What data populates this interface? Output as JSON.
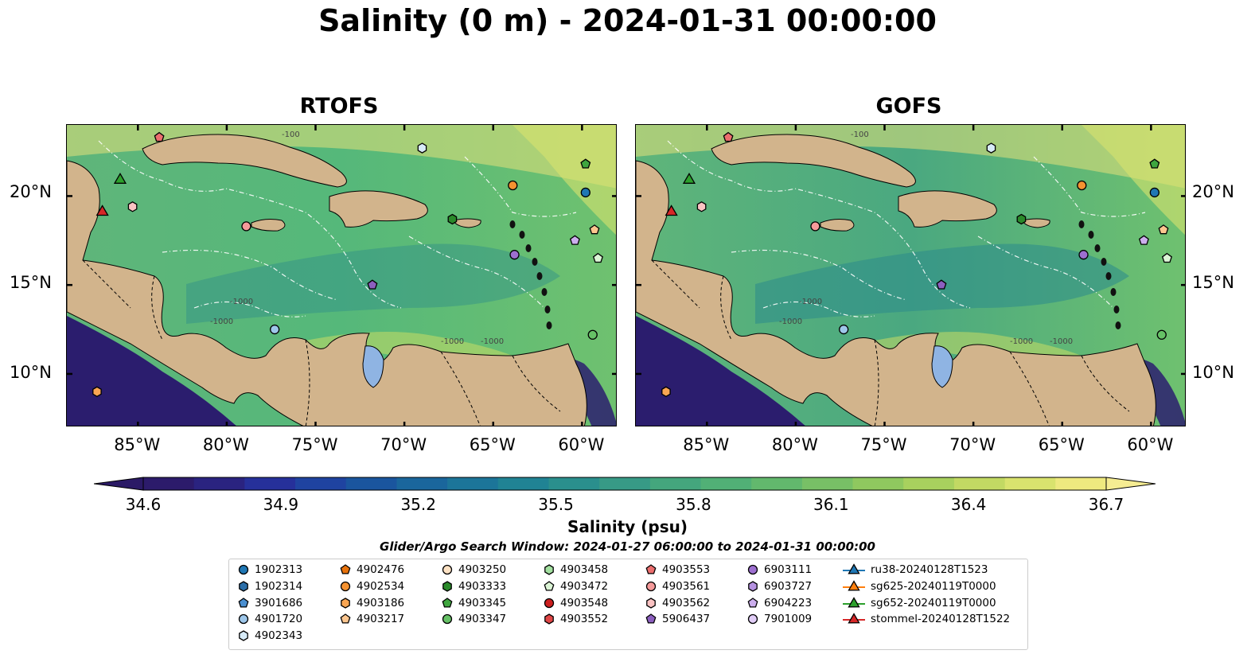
{
  "title": "Salinity (0 m) - 2024-01-31 00:00:00",
  "panels": [
    {
      "title": "RTOFS",
      "tint": "#55b87a"
    },
    {
      "title": "GOFS",
      "tint": "#4aa880"
    }
  ],
  "lat_labels": [
    "20°N",
    "15°N",
    "10°N"
  ],
  "lon_labels": [
    "85°W",
    "80°W",
    "75°W",
    "70°W",
    "65°W",
    "60°W"
  ],
  "contour_labels": [
    "-100",
    "-1000",
    "-1000",
    "-1000",
    "-1000"
  ],
  "colors": {
    "land": "#d2b48c",
    "ocean_mid": "#4daf7c",
    "ocean_fresh": "#2b1d6e",
    "ocean_salty": "#e6e07a",
    "lake": "#8fb4e3"
  },
  "colorbar": {
    "label": "Salinity (psu)",
    "min": 34.6,
    "max": 36.7,
    "ticks": [
      "34.6",
      "34.9",
      "35.2",
      "35.5",
      "35.8",
      "36.1",
      "36.4",
      "36.7"
    ],
    "colors": [
      "#2c1b6b",
      "#2a2380",
      "#26309a",
      "#1f43a0",
      "#1a559e",
      "#1a669c",
      "#1c7599",
      "#208394",
      "#2a8f8d",
      "#379a86",
      "#44a67d",
      "#51b076",
      "#62b86d",
      "#78c066",
      "#8fc85f",
      "#a8d15e",
      "#c2d963",
      "#d9e36e",
      "#eee97f"
    ],
    "extend_low": "#2b1a66",
    "extend_high": "#f5ec92"
  },
  "search_window": "Glider/Argo Search Window: 2024-01-27 06:00:00 to 2024-01-31 00:00:00",
  "legend": [
    {
      "label": "1902313",
      "marker": "circle",
      "color": "#1f77b4"
    },
    {
      "label": "1902314",
      "marker": "hexagon",
      "color": "#2b6ea8"
    },
    {
      "label": "3901686",
      "marker": "pentagon",
      "color": "#4a8fd0"
    },
    {
      "label": "4901720",
      "marker": "circle",
      "color": "#9ec7ea"
    },
    {
      "label": "4902343",
      "marker": "hexagon",
      "color": "#d7ebf8"
    },
    {
      "label": "4902476",
      "marker": "pentagon",
      "color": "#e8730c"
    },
    {
      "label": "4902534",
      "marker": "circle",
      "color": "#f59230"
    },
    {
      "label": "4903186",
      "marker": "hexagon",
      "color": "#f9a653"
    },
    {
      "label": "4903217",
      "marker": "pentagon",
      "color": "#fcc68f"
    },
    {
      "label": "4903250",
      "marker": "circle",
      "color": "#fde2c4"
    },
    {
      "label": "4903333",
      "marker": "hexagon",
      "color": "#2a8a2a"
    },
    {
      "label": "4903345",
      "marker": "pentagon",
      "color": "#3fa63f"
    },
    {
      "label": "4903347",
      "marker": "circle",
      "color": "#66c166"
    },
    {
      "label": "4903458",
      "marker": "hexagon",
      "color": "#a3e0a0"
    },
    {
      "label": "4903472",
      "marker": "pentagon",
      "color": "#dcf5d6"
    },
    {
      "label": "4903548",
      "marker": "circle",
      "color": "#cc1f1f"
    },
    {
      "label": "4903552",
      "marker": "hexagon",
      "color": "#e04646"
    },
    {
      "label": "4903553",
      "marker": "pentagon",
      "color": "#ec6e6e"
    },
    {
      "label": "4903561",
      "marker": "circle",
      "color": "#f59a9a"
    },
    {
      "label": "4903562",
      "marker": "hexagon",
      "color": "#fbc3c3"
    },
    {
      "label": "5906437",
      "marker": "pentagon",
      "color": "#8c5fbf"
    },
    {
      "label": "6903111",
      "marker": "circle",
      "color": "#9d6fd0"
    },
    {
      "label": "6903727",
      "marker": "hexagon",
      "color": "#b591e0"
    },
    {
      "label": "6904223",
      "marker": "pentagon",
      "color": "#ccaeed"
    },
    {
      "label": "7901009",
      "marker": "circle",
      "color": "#e1cdf7"
    },
    {
      "label": "ru38-20240128T1523",
      "marker": "triangle-line",
      "color": "#1f77b4"
    },
    {
      "label": "sg625-20240119T0000",
      "marker": "triangle-line",
      "color": "#ff7f0e"
    },
    {
      "label": "sg652-20240119T0000",
      "marker": "triangle-line",
      "color": "#2ca02c"
    },
    {
      "label": "stommel-20240128T1522",
      "marker": "triangle-line",
      "color": "#d62728"
    }
  ],
  "floats_on_map": [
    {
      "id": "1902313",
      "lon": -59.8,
      "lat": 20.2
    },
    {
      "id": "4902534",
      "lon": -63.9,
      "lat": 20.6
    },
    {
      "id": "4903345",
      "lon": -59.8,
      "lat": 21.8
    },
    {
      "id": "4903553",
      "lon": -83.8,
      "lat": 23.3
    },
    {
      "id": "4902343",
      "lon": -69.0,
      "lat": 22.7
    },
    {
      "id": "4903562",
      "lon": -85.3,
      "lat": 19.4
    },
    {
      "id": "4903561",
      "lon": -78.9,
      "lat": 18.3
    },
    {
      "id": "4903333",
      "lon": -67.3,
      "lat": 18.7
    },
    {
      "id": "6904223",
      "lon": -60.4,
      "lat": 17.5
    },
    {
      "id": "4903217",
      "lon": -59.3,
      "lat": 18.1
    },
    {
      "id": "4903472",
      "lon": -59.1,
      "lat": 16.5
    },
    {
      "id": "6903111",
      "lon": -63.8,
      "lat": 16.7
    },
    {
      "id": "5906437",
      "lon": -71.8,
      "lat": 15.0
    },
    {
      "id": "4901720",
      "lon": -77.3,
      "lat": 12.5
    },
    {
      "id": "4903347",
      "lon": -59.4,
      "lat": 12.2
    },
    {
      "id": "4903186",
      "lon": -87.3,
      "lat": 9.0
    }
  ],
  "gliders_on_map": [
    {
      "id": "sg652-20240119T0000",
      "lon": -86.0,
      "lat": 20.9
    },
    {
      "id": "stommel-20240128T1522",
      "lon": -87.0,
      "lat": 19.1
    }
  ]
}
